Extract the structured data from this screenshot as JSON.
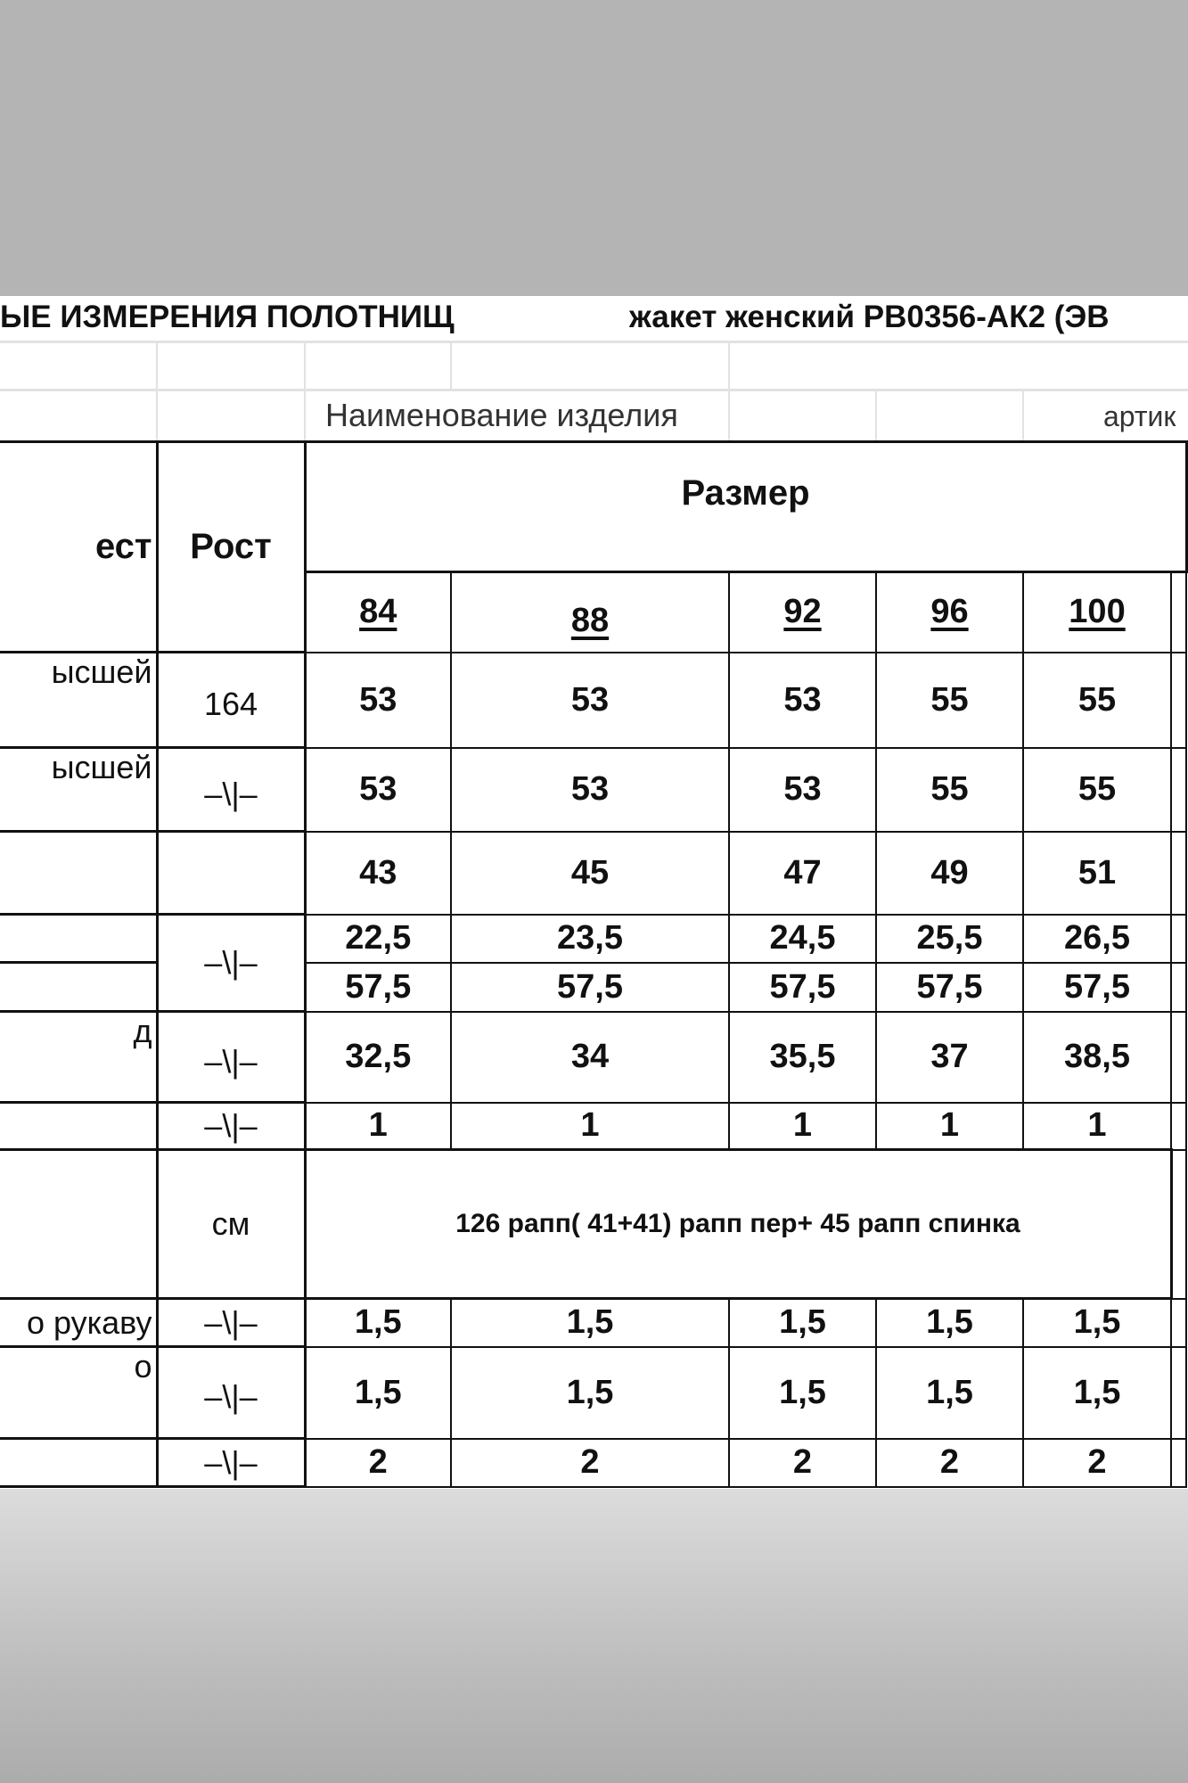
{
  "title": {
    "left": "ЫЕ  ИЗМЕРЕНИЯ  ПОЛОТНИЩ",
    "right": "жакет женский РВ0356-АК2 (ЭВ"
  },
  "labels": {
    "product_name": "Наименование изделия",
    "article": "артик"
  },
  "table": {
    "header_left": "ест",
    "header_height": "Рост",
    "header_size": "Размер",
    "sizes": [
      "84",
      "88",
      "92",
      "96",
      "100"
    ],
    "rows": [
      {
        "label": "ысшей",
        "unit": "164",
        "values": [
          "53",
          "53",
          "53",
          "55",
          "55"
        ]
      },
      {
        "label": "ысшей",
        "unit": "–\\|–",
        "values": [
          "53",
          "53",
          "53",
          "55",
          "55"
        ]
      },
      {
        "label": "",
        "unit": "",
        "values": [
          "43",
          "45",
          "47",
          "49",
          "51"
        ]
      },
      {
        "label": "",
        "unit": "–\\|–",
        "values": [
          "22,5",
          "23,5",
          "24,5",
          "25,5",
          "26,5"
        ]
      },
      {
        "label": "",
        "unit": "",
        "values": [
          "57,5",
          "57,5",
          "57,5",
          "57,5",
          "57,5"
        ]
      },
      {
        "label": "д",
        "unit": "–\\|–",
        "values": [
          "32,5",
          "34",
          "35,5",
          "37",
          "38,5"
        ]
      },
      {
        "label": "",
        "unit": "–\\|–",
        "values": [
          "1",
          "1",
          "1",
          "1",
          "1"
        ]
      },
      {
        "label": "",
        "unit": "см",
        "note": "126 рапп( 41+41) рапп пер+ 45 рапп спинка"
      },
      {
        "label": "о рукаву",
        "unit": "–\\|–",
        "values": [
          "1,5",
          "1,5",
          "1,5",
          "1,5",
          "1,5"
        ]
      },
      {
        "label": "о",
        "unit": "–\\|–",
        "values": [
          "1,5",
          "1,5",
          "1,5",
          "1,5",
          "1,5"
        ]
      },
      {
        "label": "",
        "unit": "–\\|–",
        "values": [
          "2",
          "2",
          "2",
          "2",
          "2"
        ]
      }
    ]
  }
}
